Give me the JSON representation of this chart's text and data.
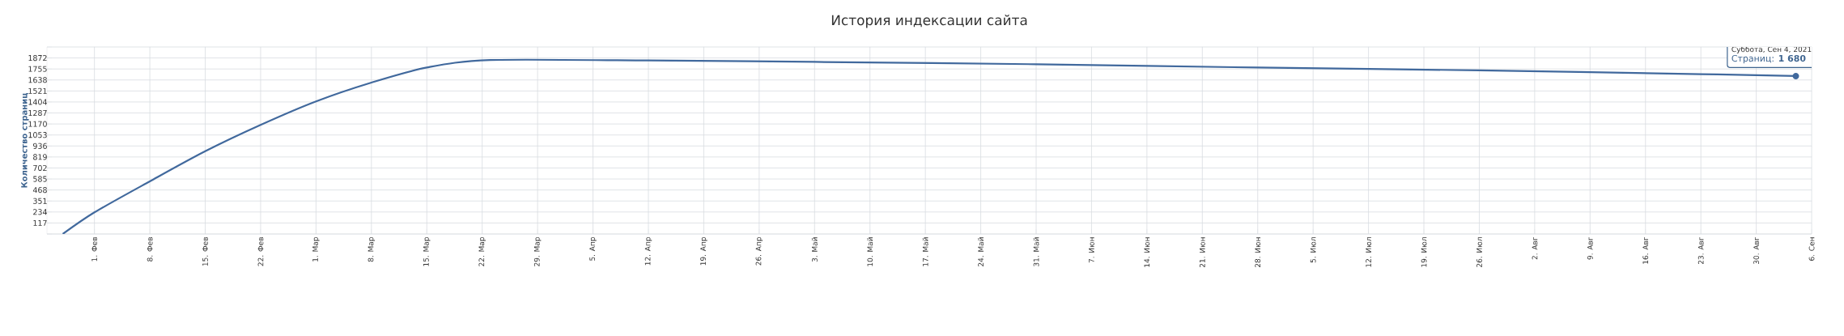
{
  "chart_data": {
    "type": "line",
    "title": "История индексации сайта",
    "ylabel": "Количество страниц",
    "x": [
      "2021-01-28",
      "2021-02-01",
      "2021-02-08",
      "2021-02-15",
      "2021-02-22",
      "2021-03-01",
      "2021-03-08",
      "2021-03-15",
      "2021-03-23",
      "2021-04-12",
      "2021-05-03",
      "2021-05-31",
      "2021-06-28",
      "2021-07-26",
      "2021-08-23",
      "2021-09-04"
    ],
    "series": [
      {
        "color": "#41699d",
        "values": [
          0,
          230,
          560,
          880,
          1160,
          1410,
          1610,
          1770,
          1850,
          1845,
          1830,
          1805,
          1770,
          1740,
          1700,
          1680
        ]
      }
    ],
    "xlim": [
      "2021-01-26",
      "2021-09-06"
    ],
    "xticks": [
      {
        "value": "2021-02-01",
        "label": "1. Фев"
      },
      {
        "value": "2021-02-08",
        "label": "8. Фев"
      },
      {
        "value": "2021-02-15",
        "label": "15. Фев"
      },
      {
        "value": "2021-02-22",
        "label": "22. Фев"
      },
      {
        "value": "2021-03-01",
        "label": "1. Мар"
      },
      {
        "value": "2021-03-08",
        "label": "8. Мар"
      },
      {
        "value": "2021-03-15",
        "label": "15. Мар"
      },
      {
        "value": "2021-03-22",
        "label": "22. Мар"
      },
      {
        "value": "2021-03-29",
        "label": "29. Мар"
      },
      {
        "value": "2021-04-05",
        "label": "5. Апр"
      },
      {
        "value": "2021-04-12",
        "label": "12. Апр"
      },
      {
        "value": "2021-04-19",
        "label": "19. Апр"
      },
      {
        "value": "2021-04-26",
        "label": "26. Апр"
      },
      {
        "value": "2021-05-03",
        "label": "3. Май"
      },
      {
        "value": "2021-05-10",
        "label": "10. Май"
      },
      {
        "value": "2021-05-17",
        "label": "17. Май"
      },
      {
        "value": "2021-05-24",
        "label": "24. Май"
      },
      {
        "value": "2021-05-31",
        "label": "31. Май"
      },
      {
        "value": "2021-06-07",
        "label": "7. Июн"
      },
      {
        "value": "2021-06-14",
        "label": "14. Июн"
      },
      {
        "value": "2021-06-21",
        "label": "21. Июн"
      },
      {
        "value": "2021-06-28",
        "label": "28. Июн"
      },
      {
        "value": "2021-07-05",
        "label": "5. Июл"
      },
      {
        "value": "2021-07-12",
        "label": "12. Июл"
      },
      {
        "value": "2021-07-19",
        "label": "19. Июл"
      },
      {
        "value": "2021-07-26",
        "label": "26. Июл"
      },
      {
        "value": "2021-08-02",
        "label": "2. Авг"
      },
      {
        "value": "2021-08-09",
        "label": "9. Авг"
      },
      {
        "value": "2021-08-16",
        "label": "16. Авг"
      },
      {
        "value": "2021-08-23",
        "label": "23. Авг"
      },
      {
        "value": "2021-08-30",
        "label": "30. Авг"
      },
      {
        "value": "2021-09-06",
        "label": "6. Сен"
      }
    ],
    "ylim": [
      0,
      1989
    ],
    "yticks": [
      {
        "value": 0,
        "label": null
      },
      117,
      234,
      351,
      468,
      585,
      702,
      819,
      936,
      1053,
      1170,
      1287,
      1404,
      1521,
      1638,
      1755,
      1872,
      {
        "value": 1989,
        "label": null
      }
    ],
    "grid": true,
    "annotations": [
      "Суббота, Сен 4, 2021",
      "Страниц: **1 680**"
    ]
  }
}
